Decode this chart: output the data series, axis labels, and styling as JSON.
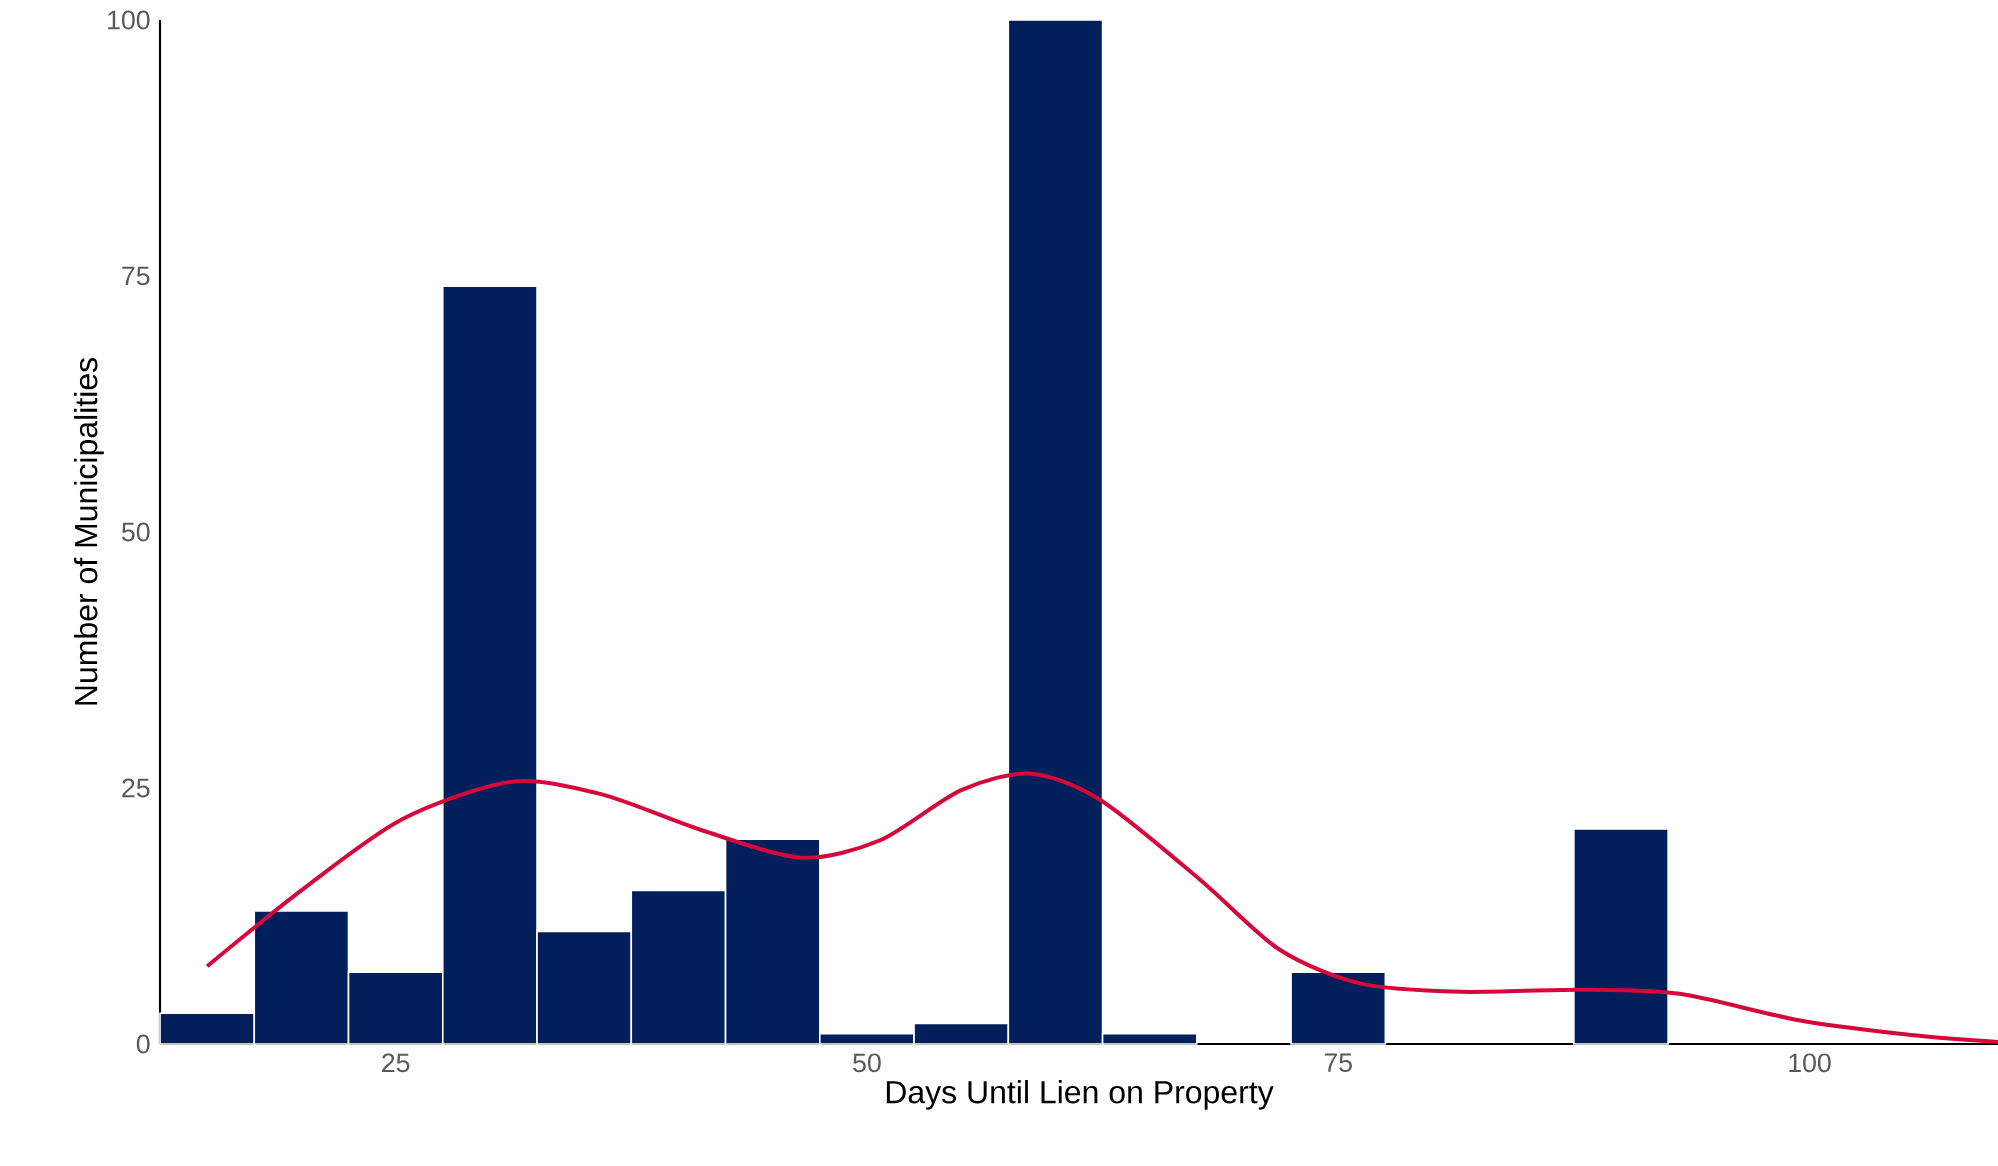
{
  "chart_data": {
    "type": "histogram",
    "xlabel": "Days Until Lien on Property",
    "ylabel": "Number of Municipalities",
    "bins": [
      12.5,
      17.5,
      22.5,
      27.5,
      32.5,
      37.5,
      42.5,
      47.5,
      52.5,
      57.5,
      62.5,
      67.5,
      72.5,
      77.5,
      82.5,
      87.5,
      92.5,
      97.5,
      102.5,
      107.5
    ],
    "values": [
      3,
      13,
      7,
      74,
      11,
      15,
      20,
      1,
      2,
      100,
      1,
      0,
      7,
      0,
      0,
      21,
      0,
      0,
      0
    ],
    "color": "#001f5b",
    "xlim": [
      12.5,
      110
    ],
    "ylim": [
      0,
      100
    ],
    "xticks": [
      25,
      50,
      75,
      100
    ],
    "yticks": [
      0,
      25,
      50,
      75,
      100
    ],
    "series": [
      {
        "type": "line",
        "color": "#d6083b",
        "x": [
          15.0,
          20.0,
          25.3,
          31.1,
          35.9,
          41.2,
          46.5,
          50.7,
          55.0,
          58.7,
          62.4,
          67.7,
          71.9,
          76.2,
          81.5,
          87.8,
          93.1,
          99.5,
          105.8,
          110
        ],
        "values": [
          7.6,
          15.0,
          21.9,
          25.6,
          24.4,
          20.9,
          18.2,
          19.9,
          24.8,
          26.4,
          23.8,
          16.0,
          9.2,
          5.9,
          5.1,
          5.3,
          4.9,
          2.3,
          0.8,
          0.2
        ]
      }
    ]
  }
}
